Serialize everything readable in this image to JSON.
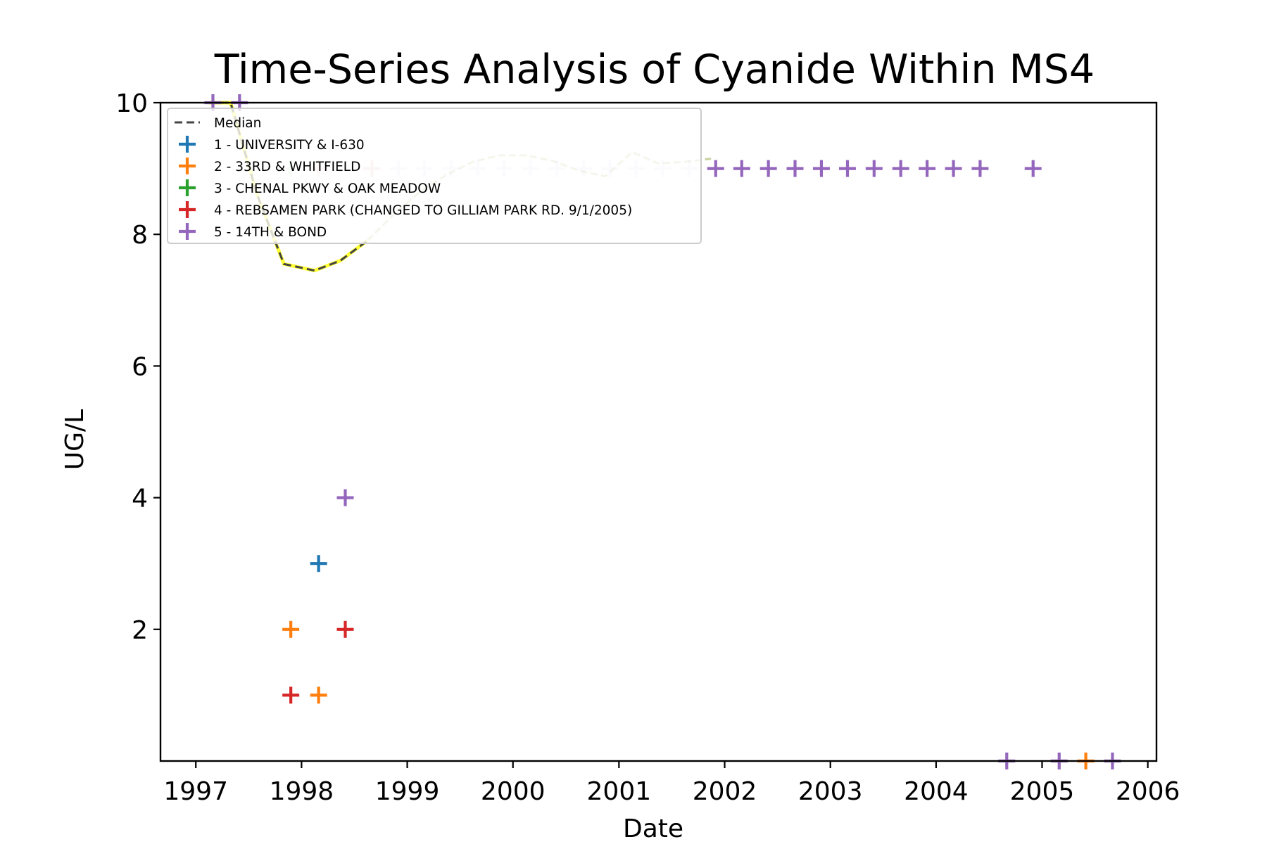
{
  "chart_data": {
    "type": "scatter",
    "title": "Time-Series Analysis of Cyanide Within MS4",
    "xlabel": "Date",
    "ylabel": "UG/L",
    "x_axis_type": "date",
    "xlim": [
      "1996-09-01",
      "2006-01-31"
    ],
    "ylim": [
      0,
      10
    ],
    "x_ticks": [
      "1997",
      "1998",
      "1999",
      "2000",
      "2001",
      "2002",
      "2003",
      "2004",
      "2005",
      "2006"
    ],
    "y_ticks": [
      "2",
      "4",
      "6",
      "8",
      "10"
    ],
    "grid": false,
    "legend_placement": "top-left",
    "colors": {
      "median": "#444444",
      "median_highlight": "#ffff33",
      "median_faded": "#c9d0a0"
    },
    "median": {
      "name": "Median",
      "style": "dashed",
      "points": [
        [
          "1997-02-15",
          10.0
        ],
        [
          "1997-05-01",
          10.0
        ],
        [
          "1997-08-01",
          8.6
        ],
        [
          "1997-11-01",
          7.55
        ],
        [
          "1998-02-15",
          7.45
        ],
        [
          "1998-05-15",
          7.6
        ],
        [
          "1998-08-15",
          7.9
        ],
        [
          "1998-11-15",
          8.3
        ],
        [
          "1999-02-15",
          8.65
        ],
        [
          "1999-05-15",
          8.9
        ],
        [
          "1999-08-15",
          9.1
        ],
        [
          "1999-11-15",
          9.2
        ],
        [
          "2000-02-15",
          9.2
        ],
        [
          "2000-05-15",
          9.12
        ],
        [
          "2000-08-15",
          8.97
        ],
        [
          "2000-11-15",
          8.88
        ],
        [
          "2001-02-15",
          9.25
        ],
        [
          "2001-05-15",
          9.08
        ],
        [
          "2001-08-15",
          9.1
        ],
        [
          "2001-11-15",
          9.15
        ]
      ],
      "highlight_ranges": [
        [
          "1997-02-15",
          "1998-09-01"
        ],
        [
          "2001-10-01",
          "2001-11-15"
        ]
      ]
    },
    "series": [
      {
        "name": "1 - UNIVERSITY & I-630",
        "color": "#1f77b4",
        "points": [
          [
            "1998-03-01",
            3
          ]
        ]
      },
      {
        "name": "2 - 33RD & WHITFIELD",
        "color": "#ff7f0e",
        "points": [
          [
            "1997-11-25",
            2
          ],
          [
            "1998-03-01",
            1
          ],
          [
            "1998-09-01",
            9
          ],
          [
            "2005-06-01",
            0
          ]
        ]
      },
      {
        "name": "3 - CHENAL PKWY & OAK MEADOW",
        "color": "#2ca02c",
        "points": [
          [
            "1997-11-25",
            9
          ]
        ]
      },
      {
        "name": "4 - REBSAMEN PARK (CHANGED TO GILLIAM PARK RD. 9/1/2005)",
        "color": "#d62728",
        "points": [
          [
            "1997-11-25",
            1
          ],
          [
            "1998-03-01",
            9
          ],
          [
            "1998-06-01",
            2
          ]
        ]
      },
      {
        "name": "5 - 14TH & BOND",
        "color": "#9467bd",
        "points": [
          [
            "1997-03-01",
            10
          ],
          [
            "1997-06-01",
            10
          ],
          [
            "1998-06-01",
            4
          ],
          [
            "1998-09-01",
            9
          ],
          [
            "1998-12-01",
            9
          ],
          [
            "1999-03-01",
            9
          ],
          [
            "1999-06-01",
            9
          ],
          [
            "1999-09-01",
            9
          ],
          [
            "1999-12-01",
            9
          ],
          [
            "2000-03-01",
            9
          ],
          [
            "2000-06-01",
            9
          ],
          [
            "2000-09-01",
            9
          ],
          [
            "2000-12-01",
            9
          ],
          [
            "2001-03-01",
            9
          ],
          [
            "2001-06-01",
            9
          ],
          [
            "2001-09-01",
            9
          ],
          [
            "2001-12-01",
            9
          ],
          [
            "2002-03-01",
            9
          ],
          [
            "2002-06-01",
            9
          ],
          [
            "2002-09-01",
            9
          ],
          [
            "2002-12-01",
            9
          ],
          [
            "2003-03-01",
            9
          ],
          [
            "2003-06-01",
            9
          ],
          [
            "2003-09-01",
            9
          ],
          [
            "2003-12-01",
            9
          ],
          [
            "2004-03-01",
            9
          ],
          [
            "2004-06-01",
            9
          ],
          [
            "2004-12-01",
            9
          ],
          [
            "2004-09-01",
            0
          ],
          [
            "2005-03-01",
            0
          ],
          [
            "2005-09-01",
            0
          ]
        ]
      }
    ],
    "legend_overlap_fade": true
  }
}
